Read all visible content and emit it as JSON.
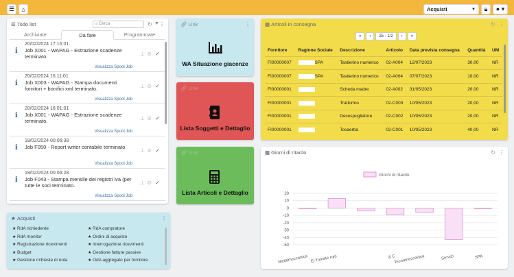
{
  "topbar": {
    "menu_icon": "hamburger-icon",
    "home_icon": "home-icon",
    "select_value": "Acquisti",
    "lock_icon": "lock-icon",
    "user_icon": "user-icon"
  },
  "todo": {
    "title": "Todo list",
    "search_placeholder": "Cerca",
    "tabs": [
      "Archiviate",
      "Da fare",
      "Programmate"
    ],
    "items": [
      {
        "date": "20/02/2024 17:16:01",
        "text": "Job X001 - WAPAG - Estrazione scadenze terminato.",
        "link": "Visualizza Spool Job"
      },
      {
        "date": "20/02/2024 16:11:01",
        "text": "Job X003 - WAPAG - Stampa documenti fornitori + bonifici xml terminato.",
        "link": "Visualizza Spool Job"
      },
      {
        "date": "20/02/2024 16:01:01",
        "text": "Job X001 - WAPAG - Estrazione scadenze terminato.",
        "link": "Visualizza Spool Job"
      },
      {
        "date": "18/02/2024 00:06:38",
        "text": "Job F050 - Report writer contabile terminato.",
        "link": "Visualizza Spool Job"
      },
      {
        "date": "18/02/2024 00:06:28",
        "text": "Job F043 - Stampa mensile dei registri iva (per tutte le soci terminato.",
        "link": "Visualizza Spool Job"
      }
    ]
  },
  "links": [
    {
      "header": "Link",
      "title": "WA Situazione giacenze",
      "color": "#c8e8f0",
      "icon": "chart-bars-icon"
    },
    {
      "header": "Link",
      "title": "Lista Soggetti e Dettaglio",
      "color": "#e05555",
      "icon": "contacts-book-icon"
    },
    {
      "header": "Link",
      "title": "Lista Articoli e Dettaglio",
      "color": "#6cbc5c",
      "icon": "calculator-icon"
    }
  ],
  "articoli": {
    "title": "Articoli in consegna",
    "pager": {
      "first": "«",
      "prev": "‹",
      "label": "25 - 1/2",
      "next": "›",
      "last": "»"
    },
    "columns": [
      "Fornitore",
      "Ragione Sociale",
      "Descrizione",
      "Articolo",
      "Data prevista consegna",
      "Quantità",
      "UM"
    ],
    "rows": [
      [
        "FI00000007",
        "SPA",
        "Tastierino numerico",
        "02-A004",
        "12/07/2023",
        "30,00",
        "NR"
      ],
      [
        "FI00000007",
        "SPA",
        "Tastierino numerico",
        "02-A004",
        "07/07/2023",
        "10,00",
        "NR"
      ],
      [
        "FI00000001",
        "",
        "Scheda madre",
        "02-A002",
        "31/05/2023",
        "20,00",
        "NR"
      ],
      [
        "FI00000001",
        "",
        "Trattorino",
        "02-C003",
        "10/05/2023",
        "20,00",
        "NR"
      ],
      [
        "FI00000001",
        "",
        "Decespugliatore",
        "02-C002",
        "10/05/2023",
        "20,00",
        "NR"
      ],
      [
        "FI00000001",
        "",
        "Tosaerba",
        "02-C001",
        "10/05/2023",
        "40,00",
        "NR"
      ]
    ]
  },
  "acquisti": {
    "title": "Acquisti",
    "left": [
      "RdA richiedente",
      "RdA monitor",
      "Registrazione ricevimenti",
      "Budget",
      "Gestione richieste di nota"
    ],
    "right": [
      "RdA compratore",
      "Ordini di acquisto",
      "Interrogazione ricevimenti",
      "Gestione fatture passive",
      "OdA aggregato per fornitore"
    ]
  },
  "ritardo": {
    "title": "Giorni di ritardo"
  },
  "chart_data": {
    "type": "bar",
    "title": "",
    "legend": "Giorni di ritardo",
    "categories": [
      "Metalmeccanica",
      "El Tomate rojo",
      "",
      "& C",
      "Tecnomeccanica",
      "Servizi",
      "SPA"
    ],
    "values": [
      0,
      13,
      -4,
      -9,
      -6,
      -43,
      0
    ],
    "ylim": [
      -50,
      20
    ],
    "yticks": [
      20,
      10,
      0,
      -10,
      -20,
      -30,
      -40,
      -50
    ],
    "colors": {
      "fill": "#f9e0f6",
      "stroke": "#d99ad0"
    }
  }
}
